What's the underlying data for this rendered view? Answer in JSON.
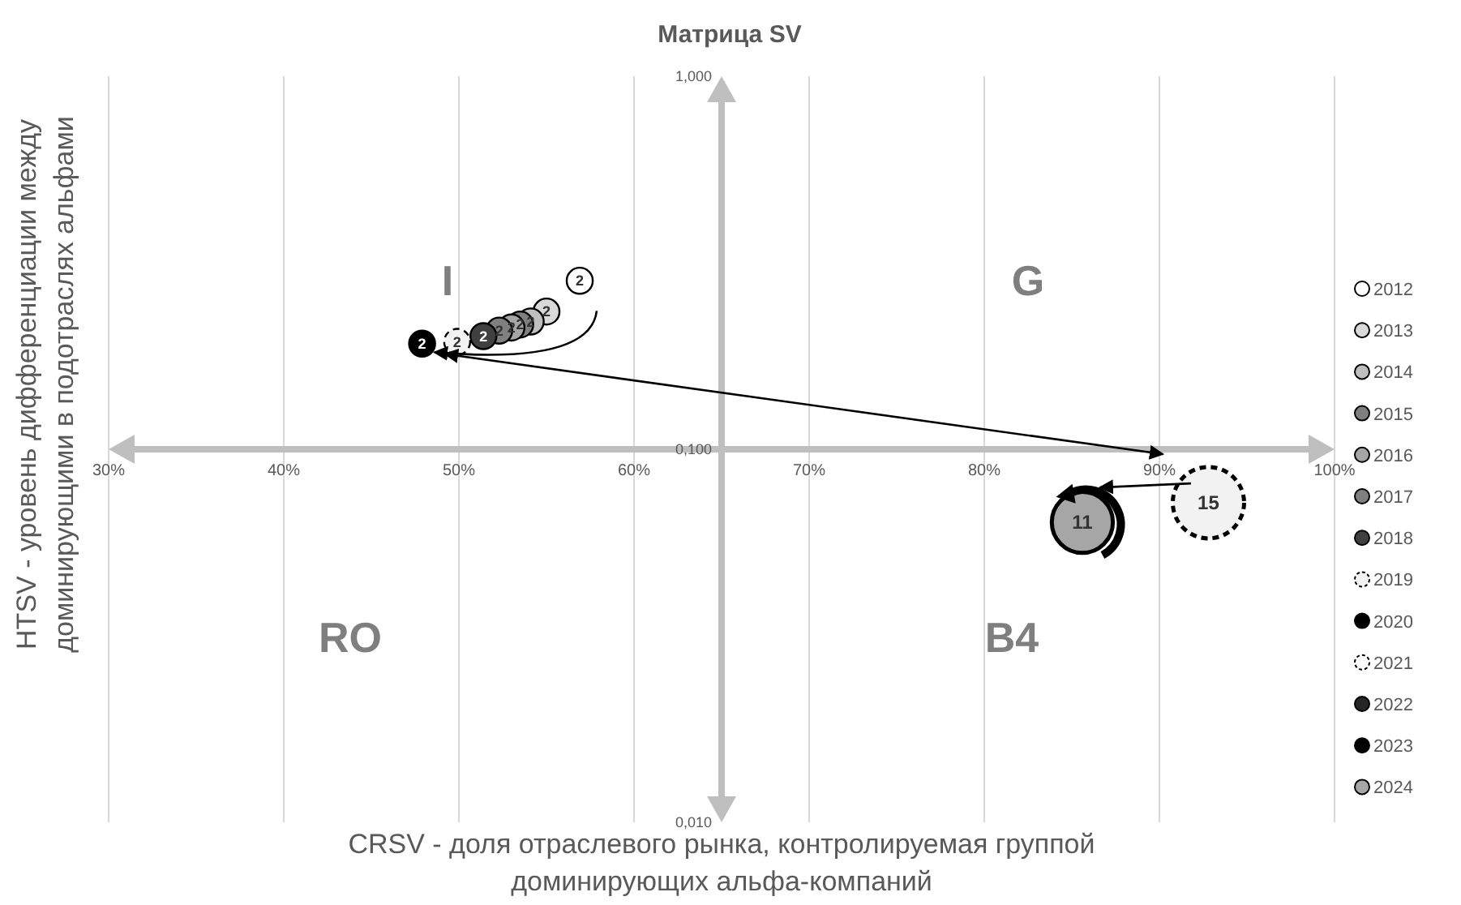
{
  "chart_data": {
    "type": "bubble",
    "title": "Матрица SV",
    "xlabel": "CRSV - доля отраслевого рынка, контролируемая группой доминирующих альфа-компаний",
    "ylabel": "HTSV - уровень дифференциации между доминирующими в подотраслях альфами",
    "log": "y",
    "grid": "x",
    "legend": "right",
    "xlim": [
      30,
      100
    ],
    "xticks": [
      {
        "value": 30,
        "label": "30%"
      },
      {
        "value": 40,
        "label": "40%"
      },
      {
        "value": 50,
        "label": "50%"
      },
      {
        "value": 60,
        "label": "60%"
      },
      {
        "value": 70,
        "label": "70%"
      },
      {
        "value": 80,
        "label": "80%"
      },
      {
        "value": 90,
        "label": "90%"
      },
      {
        "value": 100,
        "label": "100%"
      }
    ],
    "ylim": [
      0.01,
      1
    ],
    "yticks": [
      {
        "value": 0.01,
        "label": "0,010"
      },
      {
        "value": 0.1,
        "label": "0,100"
      },
      {
        "value": 1,
        "label": "1,000"
      }
    ],
    "annotations": [
      "I",
      "G",
      "RO",
      "B4"
    ],
    "series": [
      {
        "name": "2012",
        "color": "#ffffff",
        "x": [
          56.9,
          null
        ],
        "values": [
          0.283,
          null
        ],
        "sizes": [
          2,
          null
        ],
        "value_labels": [
          "2",
          null
        ]
      },
      {
        "name": "2013",
        "color": "#d9d9d9",
        "x": [
          55.0,
          null
        ],
        "values": [
          0.234,
          null
        ],
        "sizes": [
          2,
          null
        ],
        "value_labels": [
          "2",
          null
        ]
      },
      {
        "name": "2014",
        "color": "#bfbfbf",
        "x": [
          54.1,
          null
        ],
        "values": [
          0.22,
          null
        ],
        "sizes": [
          2,
          null
        ],
        "value_labels": [
          "2",
          null
        ]
      },
      {
        "name": "2015",
        "color": "#7f7f7f",
        "x": [
          53.5,
          null
        ],
        "values": [
          0.216,
          null
        ],
        "sizes": [
          2,
          null
        ],
        "value_labels": [
          "2",
          null
        ]
      },
      {
        "name": "2016",
        "color": "#a6a6a6",
        "x": [
          53.0,
          null
        ],
        "values": [
          0.212,
          null
        ],
        "sizes": [
          2,
          null
        ],
        "value_labels": [
          "2",
          null
        ]
      },
      {
        "name": "2017",
        "color": "#808080",
        "x": [
          52.3,
          null
        ],
        "values": [
          0.208,
          null
        ],
        "sizes": [
          2,
          null
        ],
        "value_labels": [
          "2",
          null
        ]
      },
      {
        "name": "2018",
        "color": "#404040",
        "x": [
          51.4,
          null
        ],
        "values": [
          0.201,
          null
        ],
        "sizes": [
          2,
          null
        ],
        "value_labels": [
          "2",
          null
        ]
      },
      {
        "name": "2019",
        "color": "#f2f2f2",
        "line_style": "dashed",
        "x": [
          49.9,
          92.8
        ],
        "values": [
          0.194,
          0.0719
        ],
        "sizes": [
          2,
          15
        ],
        "value_labels": [
          "2",
          "15"
        ]
      },
      {
        "name": "2020",
        "color": "#000000",
        "x": [
          null,
          null
        ],
        "values": [
          null,
          null
        ],
        "sizes": [
          null,
          null
        ]
      },
      {
        "name": "2021",
        "color": "#ffffff",
        "line_style": "dashed",
        "x": [
          null,
          null
        ],
        "values": [
          null,
          null
        ],
        "sizes": [
          null,
          null
        ]
      },
      {
        "name": "2022",
        "color": "#262626",
        "x": [
          null,
          null
        ],
        "values": [
          null,
          null
        ],
        "sizes": [
          null,
          null
        ]
      },
      {
        "name": "2023",
        "color": "#000000",
        "x": [
          47.9,
          null
        ],
        "values": [
          0.192,
          null
        ],
        "sizes": [
          2,
          null
        ],
        "value_labels": [
          "2",
          null
        ]
      },
      {
        "name": "2024",
        "color": "#a6a6a6",
        "x": [
          null,
          85.6
        ],
        "values": [
          null,
          0.0637
        ],
        "sizes": [
          null,
          11
        ],
        "value_labels": [
          null,
          "11"
        ]
      }
    ]
  }
}
